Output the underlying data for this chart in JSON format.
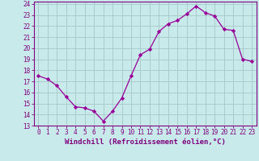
{
  "x": [
    0,
    1,
    2,
    3,
    4,
    5,
    6,
    7,
    8,
    9,
    10,
    11,
    12,
    13,
    14,
    15,
    16,
    17,
    18,
    19,
    20,
    21,
    22,
    23
  ],
  "y": [
    17.5,
    17.2,
    16.6,
    15.6,
    14.7,
    14.6,
    14.3,
    13.4,
    14.3,
    15.5,
    17.5,
    19.4,
    19.9,
    21.5,
    22.2,
    22.5,
    23.1,
    23.8,
    23.2,
    22.9,
    21.7,
    21.6,
    19.0,
    18.8
  ],
  "line_color": "#990099",
  "marker": "D",
  "marker_size": 2.2,
  "bg_color": "#c8eaea",
  "grid_color": "#aacccc",
  "xlabel": "Windchill (Refroidissement éolien,°C)",
  "xlabel_color": "#800080",
  "ylabel_ticks": [
    13,
    14,
    15,
    16,
    17,
    18,
    19,
    20,
    21,
    22,
    23,
    24
  ],
  "xlim": [
    -0.5,
    23.5
  ],
  "ylim": [
    13,
    24.2
  ],
  "tick_color": "#800080",
  "spine_color": "#800080",
  "tick_fontsize": 5.5,
  "xlabel_fontsize": 6.5
}
